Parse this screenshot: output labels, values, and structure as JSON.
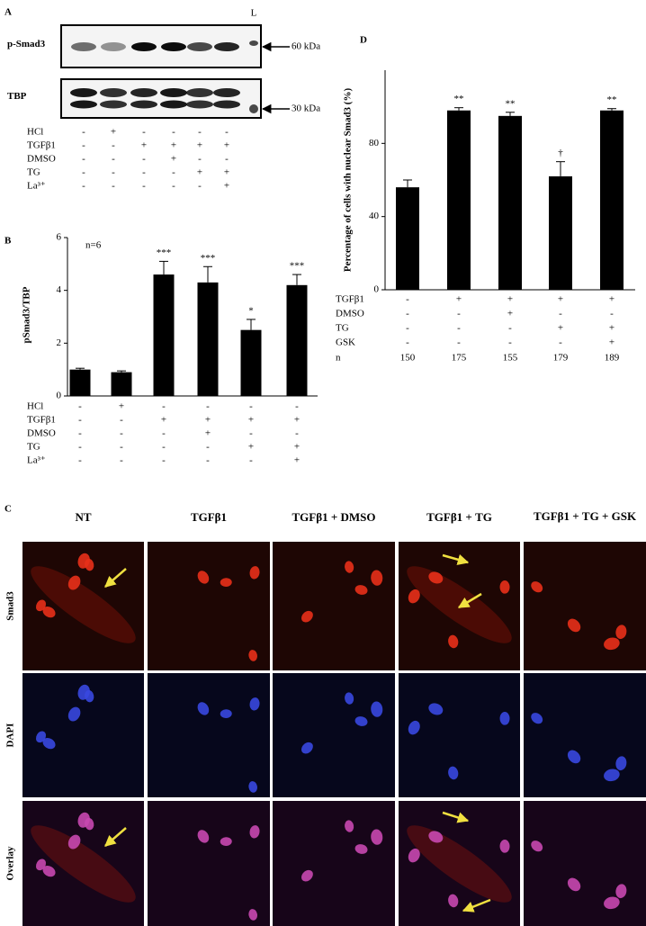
{
  "blot": {
    "panel": "A",
    "ladder": "L",
    "rows": [
      {
        "name": "p-Smad3",
        "marker": "60 kDa"
      },
      {
        "name": "TBP",
        "marker": "30 kDa"
      }
    ],
    "conditions": {
      "rows": [
        "HCl",
        "TGFβ1",
        "DMSO",
        "TG",
        "La³⁺"
      ],
      "signs": [
        [
          "-",
          "+",
          "-",
          "-",
          "-",
          "-"
        ],
        [
          "-",
          "-",
          "+",
          "+",
          "+",
          "+"
        ],
        [
          "-",
          "-",
          "-",
          "+",
          "-",
          "-"
        ],
        [
          "-",
          "-",
          "-",
          "-",
          "+",
          "+"
        ],
        [
          "-",
          "-",
          "-",
          "-",
          "-",
          "+"
        ]
      ]
    }
  },
  "chart_data": [
    {
      "type": "bar",
      "panel": "B",
      "ylabel": "pSmad3/TBP",
      "annotation": "n=6",
      "color": "#000000",
      "values": [
        1.0,
        0.9,
        4.6,
        4.3,
        2.5,
        4.2
      ],
      "errors": [
        0.05,
        0.05,
        0.5,
        0.6,
        0.4,
        0.4
      ],
      "significance": [
        null,
        null,
        "***",
        "***",
        "*",
        "***"
      ],
      "ylim": [
        0,
        6
      ],
      "yticks": [
        0,
        2,
        4,
        6
      ],
      "conditions": {
        "rows": [
          "HCl",
          "TGFβ1",
          "DMSO",
          "TG",
          "La³⁺"
        ],
        "signs": [
          [
            "-",
            "+",
            "-",
            "-",
            "-",
            "-"
          ],
          [
            "-",
            "-",
            "+",
            "+",
            "+",
            "+"
          ],
          [
            "-",
            "-",
            "-",
            "+",
            "-",
            "-"
          ],
          [
            "-",
            "-",
            "-",
            "-",
            "+",
            "+"
          ],
          [
            "-",
            "-",
            "-",
            "-",
            "-",
            "+"
          ]
        ]
      }
    },
    {
      "type": "bar",
      "panel": "D",
      "ylabel": "Percentage of cells with nuclear Smad3 (%)",
      "color": "#000000",
      "values": [
        56,
        98,
        95,
        62,
        98
      ],
      "errors": [
        4,
        1.5,
        2,
        8,
        1
      ],
      "significance": [
        null,
        "**",
        "**",
        "†",
        "**"
      ],
      "ylim": [
        0,
        120
      ],
      "yticks": [
        0,
        40,
        80
      ],
      "conditions": {
        "rows": [
          "TGFβ1",
          "DMSO",
          "TG",
          "GSK"
        ],
        "signs": [
          [
            "-",
            "+",
            "+",
            "+",
            "+"
          ],
          [
            "-",
            "-",
            "+",
            "-",
            "-"
          ],
          [
            "-",
            "-",
            "-",
            "+",
            "+"
          ],
          [
            "-",
            "-",
            "-",
            "-",
            "+"
          ]
        ]
      },
      "n": {
        "label": "n",
        "values": [
          150,
          175,
          155,
          179,
          189
        ]
      }
    }
  ],
  "micrographs": {
    "panel": "C",
    "columns": [
      "NT",
      "TGFβ1",
      "TGFβ1 + DMSO",
      "TGFβ1 + TG",
      "TGFβ1 + TG + GSK"
    ],
    "rows": [
      "Smad3",
      "DAPI",
      "Overlay"
    ]
  }
}
